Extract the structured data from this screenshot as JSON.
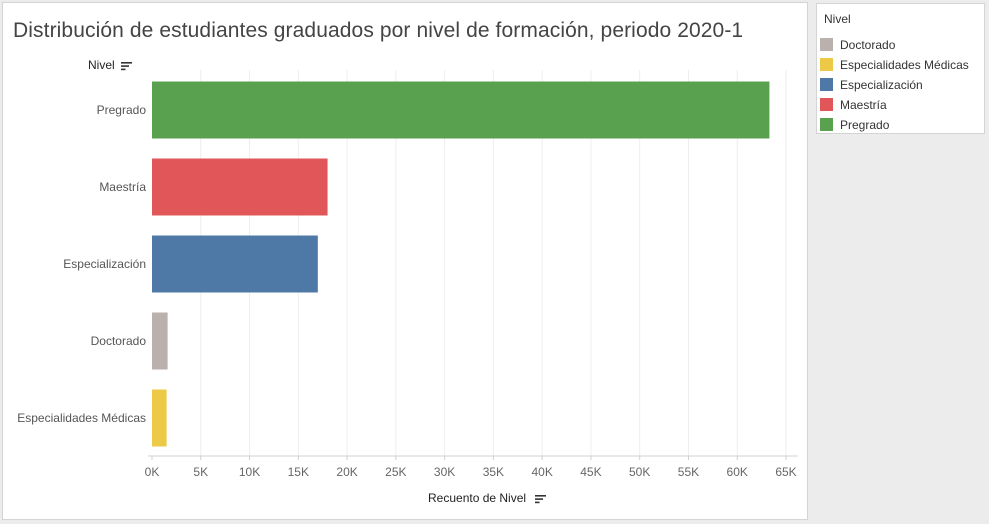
{
  "chart_data": {
    "type": "bar",
    "orientation": "horizontal",
    "title": "Distribución de estudiantes graduados por nivel de formación, periodo 2020-1",
    "ylabel": "Nivel",
    "xlabel": "Recuento de Nivel",
    "categories": [
      "Pregrado",
      "Maestría",
      "Especialización",
      "Doctorado",
      "Especialidades Médicas"
    ],
    "values": [
      63300,
      18000,
      17000,
      1600,
      1500
    ],
    "colors": [
      "#59a14f",
      "#e15759",
      "#4e79a7",
      "#bab0ac",
      "#edc948"
    ],
    "xlim": [
      0,
      65000
    ],
    "xticks": [
      0,
      5000,
      10000,
      15000,
      20000,
      25000,
      30000,
      35000,
      40000,
      45000,
      50000,
      55000,
      60000,
      65000
    ],
    "xtick_labels": [
      "0K",
      "5K",
      "10K",
      "15K",
      "20K",
      "25K",
      "30K",
      "35K",
      "40K",
      "45K",
      "50K",
      "55K",
      "60K",
      "65K"
    ],
    "grid": true,
    "legend": {
      "title": "Nivel",
      "position": "right",
      "items": [
        {
          "label": "Doctorado",
          "color": "#bab0ac"
        },
        {
          "label": "Especialidades Médicas",
          "color": "#edc948"
        },
        {
          "label": "Especialización",
          "color": "#4e79a7"
        },
        {
          "label": "Maestría",
          "color": "#e15759"
        },
        {
          "label": "Pregrado",
          "color": "#59a14f"
        }
      ]
    }
  }
}
